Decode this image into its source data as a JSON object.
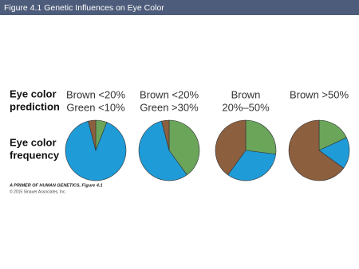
{
  "header": {
    "title": "Figure 4.1  Genetic Influences on Eye Color"
  },
  "row_labels": [
    [
      "Eye color",
      "prediction"
    ],
    [
      "Eye color",
      "frequency"
    ]
  ],
  "chart_data": [
    {
      "type": "pie",
      "title": [
        "Brown <20%",
        "Green <10%"
      ],
      "values": [
        6,
        90,
        4
      ],
      "colors": [
        "#6aa55a",
        "#1f9bd7",
        "#8c5f3f"
      ]
    },
    {
      "type": "pie",
      "title": [
        "Brown <20%",
        "Green >30%"
      ],
      "values": [
        40,
        56,
        4
      ],
      "colors": [
        "#6aa55a",
        "#1f9bd7",
        "#8c5f3f"
      ]
    },
    {
      "type": "pie",
      "title": [
        "Brown",
        "20%–50%"
      ],
      "values": [
        27,
        33,
        40
      ],
      "colors": [
        "#6aa55a",
        "#1f9bd7",
        "#8c5f3f"
      ]
    },
    {
      "type": "pie",
      "title": [
        "Brown >50%"
      ],
      "values": [
        18,
        17,
        65
      ],
      "colors": [
        "#6aa55a",
        "#1f9bd7",
        "#8c5f3f"
      ]
    }
  ],
  "footer": {
    "source": "A PRIMER OF HUMAN GENETICS, Figure 4.1",
    "copyright": "© 2015 Sinauer Associates, Inc."
  }
}
